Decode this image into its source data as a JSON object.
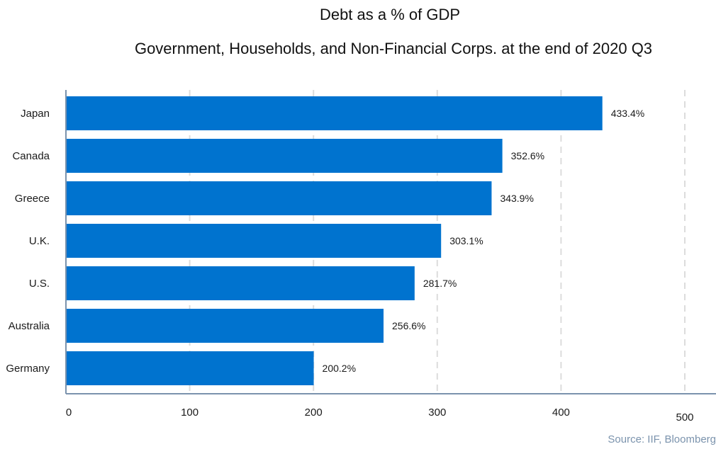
{
  "chart_data": {
    "type": "bar",
    "orientation": "horizontal",
    "title": "Debt as a % of GDP",
    "subtitle": "Government, Households, and Non-Financial Corps. at the end of 2020 Q3",
    "categories": [
      "Japan",
      "Canada",
      "Greece",
      "U.K.",
      "U.S.",
      "Australia",
      "Germany"
    ],
    "values": [
      433.4,
      352.6,
      343.9,
      303.1,
      281.7,
      256.6,
      200.2
    ],
    "value_labels": [
      "433.4%",
      "352.6%",
      "343.9%",
      "303.1%",
      "281.7%",
      "256.6%",
      "200.2%"
    ],
    "xlim": [
      0,
      500
    ],
    "xticks": [
      0,
      100,
      200,
      300,
      400,
      500
    ],
    "xtick_labels": [
      "0",
      "100",
      "200",
      "300",
      "400",
      "500"
    ],
    "grid": "vertical dashed",
    "bar_color": "#0073cf",
    "axis_color": "#7b93ad",
    "grid_color": "#dcdcdc"
  },
  "source": "Source: IIF, Bloomberg"
}
